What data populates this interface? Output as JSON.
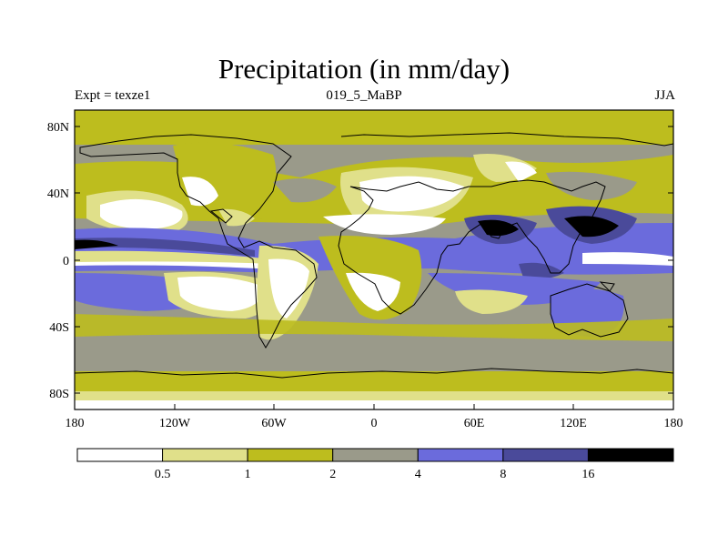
{
  "title": "Precipitation (in mm/day)",
  "subtitle_left": "Expt = texze1",
  "subtitle_center": "019_5_MaBP",
  "subtitle_right": "JJA",
  "axes": {
    "lat_ticks": [
      "80N",
      "40N",
      "0",
      "40S",
      "80S"
    ],
    "lon_ticks": [
      "180",
      "120W",
      "60W",
      "0",
      "60E",
      "120E",
      "180"
    ]
  },
  "colorbar": {
    "labels": [
      "0.5",
      "1",
      "2",
      "4",
      "8",
      "16"
    ],
    "colors": [
      "#ffffff",
      "#e0e08a",
      "#bdbd1e",
      "#9a9a8a",
      "#6b6bdc",
      "#4a4a9a",
      "#000000"
    ]
  }
}
